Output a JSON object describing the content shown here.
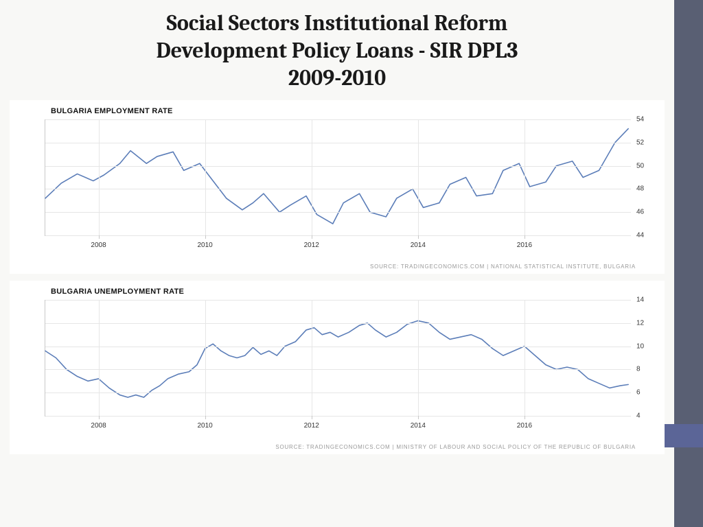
{
  "title_line1": "Social Sectors Institutional Reform",
  "title_line2": "Development Policy Loans - SIR DPL3",
  "title_line3": "2009-2010",
  "sidebar_color": "#595f73",
  "sidebar_accent_color": "#5b6597",
  "chart1": {
    "type": "line",
    "title": "BULGARIA EMPLOYMENT RATE",
    "source": "SOURCE: TRADINGECONOMICS.COM | NATIONAL STATISTICAL INSTITUTE, BULGARIA",
    "line_color": "#5b7db8",
    "line_width": 1.6,
    "background_color": "#ffffff",
    "grid_color": "#e6e6e6",
    "axis_color": "#c8c8c8",
    "xlim": [
      2007,
      2018
    ],
    "ylim": [
      44,
      54
    ],
    "ytick_step": 2,
    "yticks": [
      44,
      46,
      48,
      50,
      52,
      54
    ],
    "xticks": [
      2008,
      2010,
      2012,
      2014,
      2016
    ],
    "tick_fontsize": 10,
    "title_fontsize": 11,
    "data": [
      [
        2007.0,
        47.2
      ],
      [
        2007.3,
        48.5
      ],
      [
        2007.6,
        49.3
      ],
      [
        2007.9,
        48.7
      ],
      [
        2008.1,
        49.2
      ],
      [
        2008.4,
        50.2
      ],
      [
        2008.6,
        51.3
      ],
      [
        2008.9,
        50.2
      ],
      [
        2009.1,
        50.8
      ],
      [
        2009.4,
        51.2
      ],
      [
        2009.6,
        49.6
      ],
      [
        2009.9,
        50.2
      ],
      [
        2010.1,
        49.0
      ],
      [
        2010.4,
        47.2
      ],
      [
        2010.7,
        46.2
      ],
      [
        2010.9,
        46.8
      ],
      [
        2011.1,
        47.6
      ],
      [
        2011.4,
        46.0
      ],
      [
        2011.6,
        46.6
      ],
      [
        2011.9,
        47.4
      ],
      [
        2012.1,
        45.8
      ],
      [
        2012.4,
        45.0
      ],
      [
        2012.6,
        46.8
      ],
      [
        2012.9,
        47.6
      ],
      [
        2013.1,
        46.0
      ],
      [
        2013.4,
        45.6
      ],
      [
        2013.6,
        47.2
      ],
      [
        2013.9,
        48.0
      ],
      [
        2014.1,
        46.4
      ],
      [
        2014.4,
        46.8
      ],
      [
        2014.6,
        48.4
      ],
      [
        2014.9,
        49.0
      ],
      [
        2015.1,
        47.4
      ],
      [
        2015.4,
        47.6
      ],
      [
        2015.6,
        49.6
      ],
      [
        2015.9,
        50.2
      ],
      [
        2016.1,
        48.2
      ],
      [
        2016.4,
        48.6
      ],
      [
        2016.6,
        50.0
      ],
      [
        2016.9,
        50.4
      ],
      [
        2017.1,
        49.0
      ],
      [
        2017.4,
        49.6
      ],
      [
        2017.7,
        52.0
      ],
      [
        2017.95,
        53.2
      ]
    ]
  },
  "chart2": {
    "type": "line",
    "title": "BULGARIA UNEMPLOYMENT RATE",
    "source": "SOURCE: TRADINGECONOMICS.COM | MINISTRY OF LABOUR AND SOCIAL POLICY OF THE REPUBLIC OF BULGARIA",
    "line_color": "#5b7db8",
    "line_width": 1.6,
    "background_color": "#ffffff",
    "grid_color": "#e6e6e6",
    "axis_color": "#c8c8c8",
    "xlim": [
      2007,
      2018
    ],
    "ylim": [
      4,
      14
    ],
    "ytick_step": 2,
    "yticks": [
      4,
      6,
      8,
      10,
      12,
      14
    ],
    "xticks": [
      2008,
      2010,
      2012,
      2014,
      2016
    ],
    "tick_fontsize": 10,
    "title_fontsize": 11,
    "data": [
      [
        2007.0,
        9.6
      ],
      [
        2007.2,
        9.0
      ],
      [
        2007.4,
        8.0
      ],
      [
        2007.6,
        7.4
      ],
      [
        2007.8,
        7.0
      ],
      [
        2008.0,
        7.2
      ],
      [
        2008.2,
        6.4
      ],
      [
        2008.4,
        5.8
      ],
      [
        2008.55,
        5.6
      ],
      [
        2008.7,
        5.8
      ],
      [
        2008.85,
        5.6
      ],
      [
        2009.0,
        6.2
      ],
      [
        2009.15,
        6.6
      ],
      [
        2009.3,
        7.2
      ],
      [
        2009.5,
        7.6
      ],
      [
        2009.7,
        7.8
      ],
      [
        2009.85,
        8.4
      ],
      [
        2010.0,
        9.8
      ],
      [
        2010.15,
        10.2
      ],
      [
        2010.3,
        9.6
      ],
      [
        2010.45,
        9.2
      ],
      [
        2010.6,
        9.0
      ],
      [
        2010.75,
        9.2
      ],
      [
        2010.9,
        9.9
      ],
      [
        2011.05,
        9.3
      ],
      [
        2011.2,
        9.6
      ],
      [
        2011.35,
        9.2
      ],
      [
        2011.5,
        10.0
      ],
      [
        2011.7,
        10.4
      ],
      [
        2011.9,
        11.4
      ],
      [
        2012.05,
        11.6
      ],
      [
        2012.2,
        11.0
      ],
      [
        2012.35,
        11.2
      ],
      [
        2012.5,
        10.8
      ],
      [
        2012.7,
        11.2
      ],
      [
        2012.9,
        11.8
      ],
      [
        2013.05,
        12.0
      ],
      [
        2013.2,
        11.4
      ],
      [
        2013.4,
        10.8
      ],
      [
        2013.6,
        11.2
      ],
      [
        2013.8,
        11.9
      ],
      [
        2014.0,
        12.2
      ],
      [
        2014.2,
        12.0
      ],
      [
        2014.4,
        11.2
      ],
      [
        2014.6,
        10.6
      ],
      [
        2014.8,
        10.8
      ],
      [
        2015.0,
        11.0
      ],
      [
        2015.2,
        10.6
      ],
      [
        2015.4,
        9.8
      ],
      [
        2015.6,
        9.2
      ],
      [
        2015.8,
        9.6
      ],
      [
        2016.0,
        10.0
      ],
      [
        2016.2,
        9.2
      ],
      [
        2016.4,
        8.4
      ],
      [
        2016.6,
        8.0
      ],
      [
        2016.8,
        8.2
      ],
      [
        2017.0,
        8.0
      ],
      [
        2017.2,
        7.2
      ],
      [
        2017.4,
        6.8
      ],
      [
        2017.6,
        6.4
      ],
      [
        2017.8,
        6.6
      ],
      [
        2017.95,
        6.7
      ]
    ]
  }
}
